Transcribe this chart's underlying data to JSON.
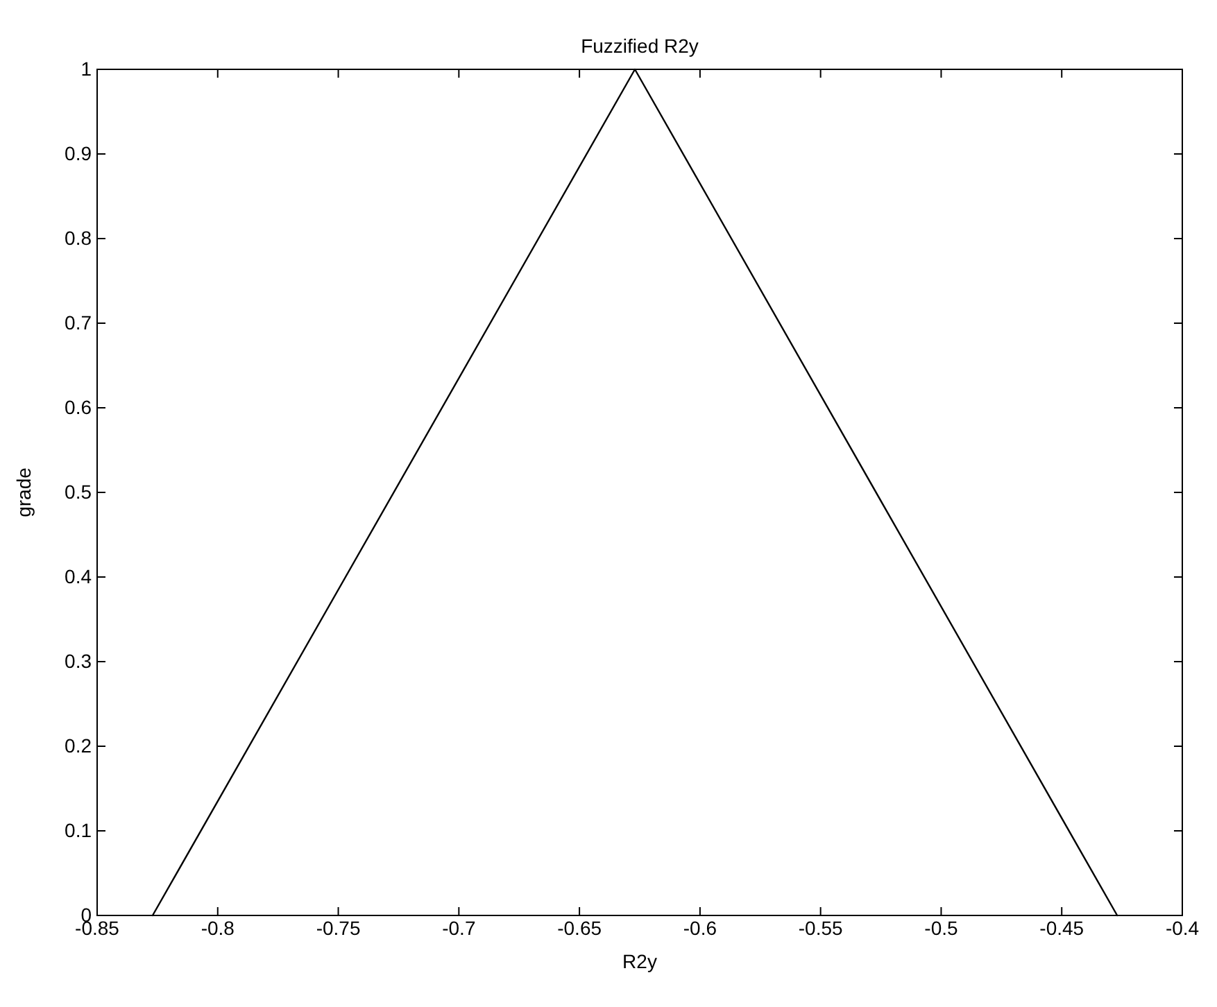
{
  "chart_data": {
    "type": "line",
    "title": "Fuzzified R2y",
    "xlabel": "R2y",
    "ylabel": "grade",
    "x": [
      -0.827,
      -0.627,
      -0.427
    ],
    "series": [
      {
        "color": "#000000",
        "values": [
          0,
          1,
          0
        ]
      }
    ],
    "xlim": [
      -0.85,
      -0.4
    ],
    "ylim": [
      0,
      1
    ],
    "xticks": [
      -0.85,
      -0.8,
      -0.75,
      -0.7,
      -0.65,
      -0.6,
      -0.55,
      -0.5,
      -0.45,
      -0.4
    ],
    "yticks": [
      0,
      0.1,
      0.2,
      0.3,
      0.4,
      0.5,
      0.6,
      0.7,
      0.8,
      0.9,
      1
    ]
  }
}
